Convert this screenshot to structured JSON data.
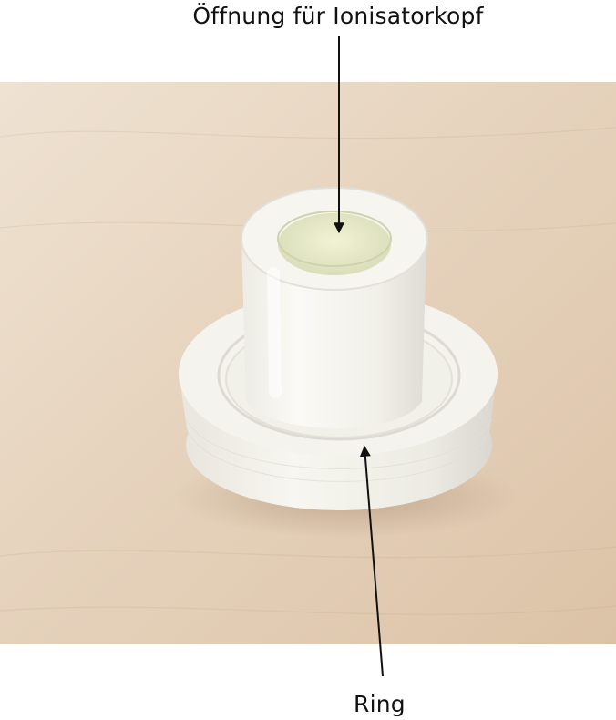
{
  "annotations": {
    "top_label": "Öffnung für Ionisatorkopf",
    "bottom_label": "Ring"
  },
  "colors": {
    "background": "#ffffff",
    "table_surface": "#e8d6c2",
    "printed_part": "#f3f1ea",
    "inner_bore": "#e9ecc9",
    "arrow": "#111111",
    "label_text": "#111111"
  },
  "photo": {
    "subject": "white 3D-printed cylindrical adapter with flange on wooden table"
  }
}
